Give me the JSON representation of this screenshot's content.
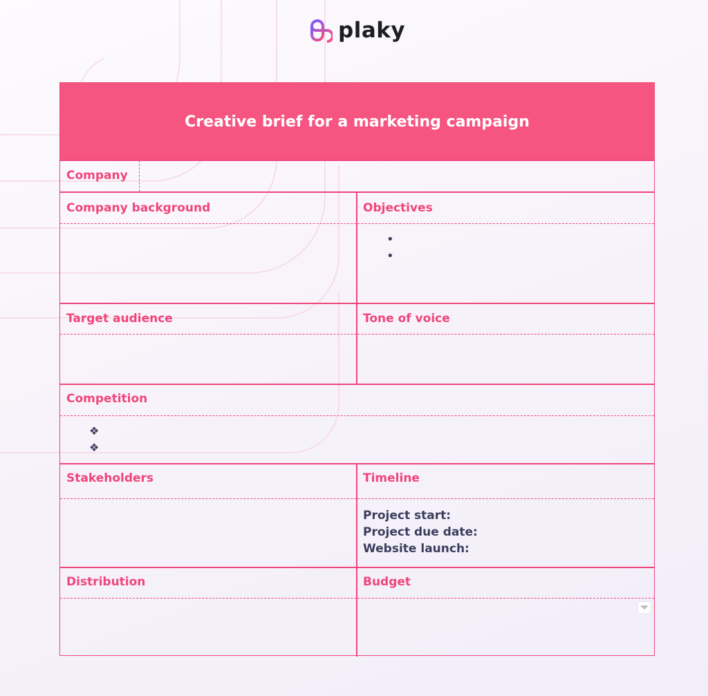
{
  "brand": {
    "name": "plaky",
    "colors": {
      "primary": "#f65581",
      "label": "#f0457a",
      "text": "#3b3d5c"
    }
  },
  "title": "Creative brief for a marketing campaign",
  "sections": {
    "company": "Company",
    "company_background": "Company background",
    "objectives": "Objectives",
    "target_audience": "Target audience",
    "tone_of_voice": "Tone of voice",
    "competition": "Competition",
    "stakeholders": "Stakeholders",
    "timeline": "Timeline",
    "distribution": "Distribution",
    "budget": "Budget"
  },
  "objectives_bullets": [
    "•",
    "•"
  ],
  "competition_bullets": [
    "❖",
    "❖"
  ],
  "timeline_items": [
    "Project start:",
    "Project due date:",
    "Website launch:"
  ]
}
